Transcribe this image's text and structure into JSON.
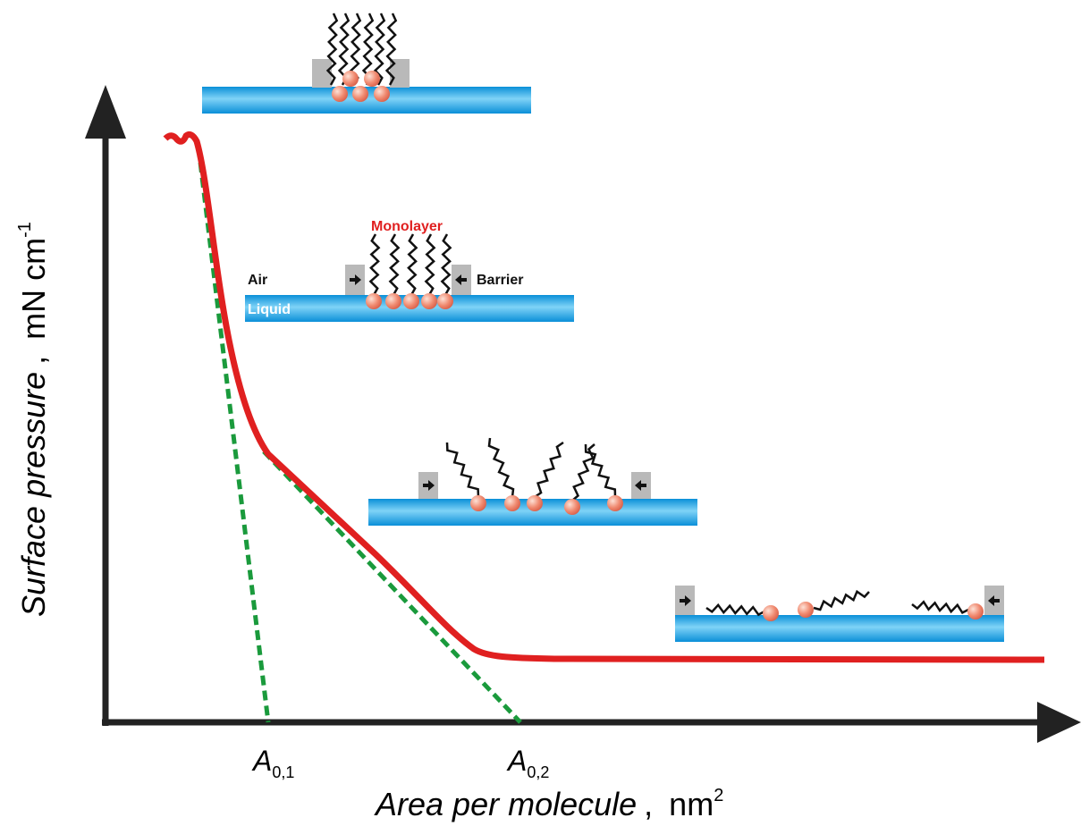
{
  "y_axis": {
    "label": "Surface pressure",
    "separator": ",",
    "unit": "mN cm",
    "unit_exponent": "-1"
  },
  "x_axis": {
    "label": "Area per molecule",
    "separator": ",",
    "unit": "nm",
    "unit_exponent": "2"
  },
  "intercepts": [
    {
      "symbol": "A",
      "subscript": "0,1"
    },
    {
      "symbol": "A",
      "subscript": "0,2"
    }
  ],
  "schematic_labels": {
    "monolayer": "Monolayer",
    "air": "Air",
    "barrier": "Barrier",
    "liquid": "Liquid"
  }
}
